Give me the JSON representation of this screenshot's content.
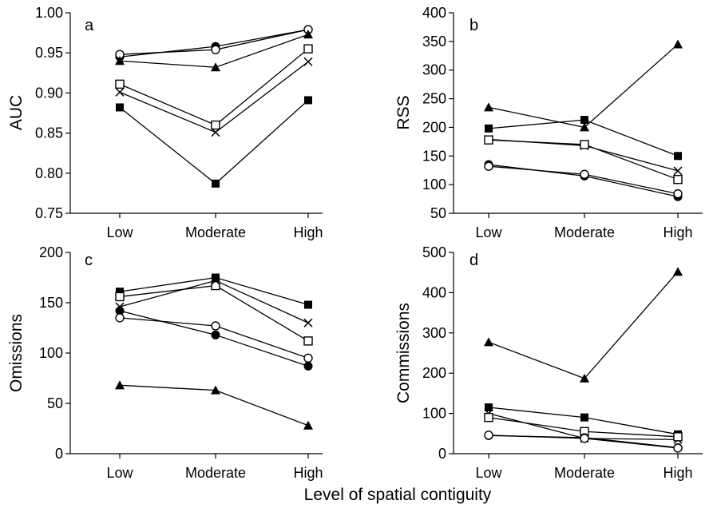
{
  "figure": {
    "xlabel": "Level of spatial contiguity"
  },
  "chart_data": [
    {
      "type": "line",
      "panel": "a",
      "ylabel": "AUC",
      "ylim": [
        0.75,
        1.0
      ],
      "yticks": [
        "0.75",
        "0.80",
        "0.85",
        "0.90",
        "0.95",
        "1.00"
      ],
      "categories": [
        "Low",
        "Moderate",
        "High"
      ],
      "series": [
        {
          "marker": "filled-circle",
          "values": [
            0.945,
            0.958,
            0.979
          ]
        },
        {
          "marker": "open-circle",
          "values": [
            0.948,
            0.954,
            0.979
          ]
        },
        {
          "marker": "filled-triangle",
          "values": [
            0.94,
            0.932,
            0.973
          ]
        },
        {
          "marker": "open-square",
          "values": [
            0.911,
            0.86,
            0.955
          ]
        },
        {
          "marker": "cross",
          "values": [
            0.901,
            0.851,
            0.939
          ]
        },
        {
          "marker": "filled-square",
          "values": [
            0.882,
            0.787,
            0.891
          ]
        }
      ]
    },
    {
      "type": "line",
      "panel": "b",
      "ylabel": "RSS",
      "ylim": [
        50,
        400
      ],
      "yticks": [
        "50",
        "100",
        "150",
        "200",
        "250",
        "300",
        "350",
        "400"
      ],
      "categories": [
        "Low",
        "Moderate",
        "High"
      ],
      "series": [
        {
          "marker": "filled-triangle",
          "values": [
            235,
            200,
            345
          ]
        },
        {
          "marker": "filled-square",
          "values": [
            198,
            213,
            150
          ]
        },
        {
          "marker": "cross",
          "values": [
            179,
            168,
            124
          ]
        },
        {
          "marker": "open-square",
          "values": [
            178,
            170,
            109
          ]
        },
        {
          "marker": "filled-circle",
          "values": [
            135,
            115,
            79
          ]
        },
        {
          "marker": "open-circle",
          "values": [
            132,
            118,
            84
          ]
        }
      ]
    },
    {
      "type": "line",
      "panel": "c",
      "ylabel": "Omissions",
      "ylim": [
        0,
        200
      ],
      "yticks": [
        "0",
        "50",
        "100",
        "150",
        "200"
      ],
      "categories": [
        "Low",
        "Moderate",
        "High"
      ],
      "series": [
        {
          "marker": "filled-square",
          "values": [
            161,
            175,
            148
          ]
        },
        {
          "marker": "open-square",
          "values": [
            156,
            167,
            112
          ]
        },
        {
          "marker": "cross",
          "values": [
            146,
            172,
            130
          ]
        },
        {
          "marker": "filled-circle",
          "values": [
            142,
            118,
            87
          ]
        },
        {
          "marker": "open-circle",
          "values": [
            135,
            127,
            95
          ]
        },
        {
          "marker": "filled-triangle",
          "values": [
            68,
            63,
            28
          ]
        }
      ]
    },
    {
      "type": "line",
      "panel": "d",
      "ylabel": "Commissions",
      "ylim": [
        0,
        500
      ],
      "yticks": [
        "0",
        "100",
        "200",
        "300",
        "400",
        "500"
      ],
      "categories": [
        "Low",
        "Moderate",
        "High"
      ],
      "series": [
        {
          "marker": "filled-triangle",
          "values": [
            277,
            187,
            452
          ]
        },
        {
          "marker": "filled-square",
          "values": [
            115,
            90,
            48
          ]
        },
        {
          "marker": "cross",
          "values": [
            100,
            38,
            35
          ]
        },
        {
          "marker": "open-square",
          "values": [
            90,
            55,
            42
          ]
        },
        {
          "marker": "filled-circle",
          "values": [
            45,
            40,
            15
          ]
        },
        {
          "marker": "open-circle",
          "values": [
            46,
            38,
            14
          ]
        }
      ]
    }
  ]
}
